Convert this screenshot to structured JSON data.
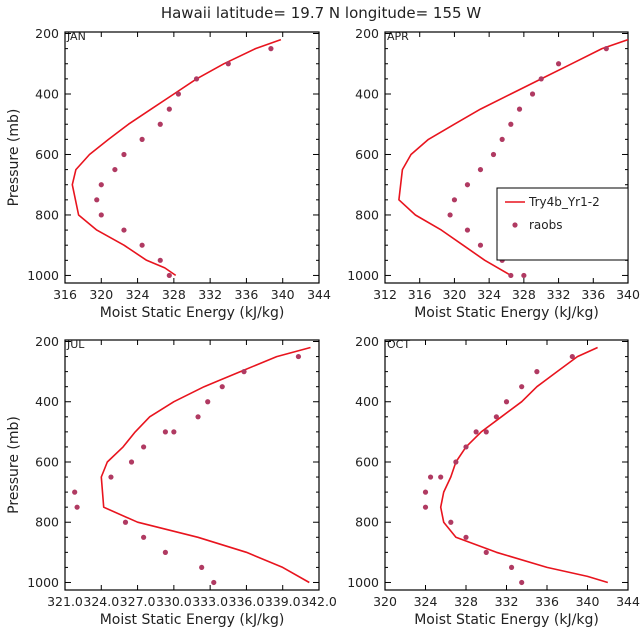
{
  "title": "Hawaii  latitude= 19.7 N longitude= 155 W",
  "colors": {
    "model": "#e8141e",
    "obs": "#b03a62",
    "axis": "#000000"
  },
  "legend": {
    "panel": 1,
    "model_label": "Try4b_Yr1-2",
    "obs_label": "raobs"
  },
  "chart_data": [
    {
      "type": "line",
      "title": "JAN",
      "xlabel": "Moist Static Energy (kJ/kg)",
      "ylabel": "Pressure (mb)",
      "xlim": [
        316,
        344
      ],
      "ylim": [
        1025,
        195
      ],
      "xticks": [
        "316",
        "320",
        "324",
        "328",
        "332",
        "336",
        "340",
        "344"
      ],
      "yticks": [
        "200",
        "400",
        "600",
        "800",
        "1000"
      ],
      "series": [
        {
          "name": "Try4b_Yr1-2",
          "kind": "line",
          "x": [
            339.8,
            337.0,
            333.5,
            330.5,
            328.0,
            325.5,
            323.0,
            320.8,
            318.7,
            317.2,
            316.8,
            317.5,
            319.5,
            322.5,
            325.0,
            327.0,
            328.2
          ],
          "y": [
            220,
            250,
            300,
            350,
            400,
            450,
            500,
            550,
            600,
            650,
            700,
            800,
            850,
            900,
            950,
            975,
            1000
          ]
        },
        {
          "name": "raobs",
          "kind": "scatter",
          "x": [
            338.7,
            334.0,
            330.5,
            328.5,
            327.5,
            326.5,
            324.5,
            322.5,
            321.5,
            320.0,
            319.5,
            320.0,
            322.5,
            324.5,
            326.5,
            327.5
          ],
          "y": [
            250,
            300,
            350,
            400,
            450,
            500,
            550,
            600,
            650,
            700,
            750,
            800,
            850,
            900,
            950,
            1000
          ]
        }
      ]
    },
    {
      "type": "line",
      "title": "APR",
      "xlabel": "Moist Static Energy (kJ/kg)",
      "ylabel": "Pressure (mb)",
      "xlim": [
        312,
        340
      ],
      "ylim": [
        1025,
        195
      ],
      "xticks": [
        "312",
        "316",
        "320",
        "324",
        "328",
        "332",
        "336",
        "340"
      ],
      "yticks": [
        "200",
        "400",
        "600",
        "800",
        "1000"
      ],
      "series": [
        {
          "name": "Try4b_Yr1-2",
          "kind": "line",
          "x": [
            340.0,
            337.0,
            333.5,
            330.0,
            326.5,
            323.0,
            320.0,
            317.0,
            315.0,
            314.0,
            313.6,
            315.5,
            318.5,
            321.0,
            323.5,
            326.5
          ],
          "y": [
            220,
            250,
            300,
            350,
            400,
            450,
            500,
            550,
            600,
            650,
            750,
            800,
            850,
            900,
            950,
            1000
          ]
        },
        {
          "name": "raobs",
          "kind": "scatter",
          "x": [
            337.5,
            332.0,
            330.0,
            329.0,
            327.5,
            326.5,
            325.5,
            324.5,
            323.0,
            321.5,
            320.0,
            319.5,
            321.5,
            323.0,
            325.5,
            326.5,
            328.0
          ],
          "y": [
            250,
            300,
            350,
            400,
            450,
            500,
            550,
            600,
            650,
            700,
            750,
            800,
            850,
            900,
            950,
            1000,
            1000
          ]
        }
      ]
    },
    {
      "type": "line",
      "title": "JUL",
      "xlabel": "Moist Static Energy (kJ/kg)",
      "ylabel": "Pressure (mb)",
      "xlim": [
        321.0,
        342.0
      ],
      "ylim": [
        1025,
        195
      ],
      "xticks": [
        "321.0",
        "324.0",
        "327.0",
        "330.0",
        "333.0",
        "336.0",
        "339.0",
        "342.0"
      ],
      "yticks": [
        "200",
        "400",
        "600",
        "800",
        "1000"
      ],
      "series": [
        {
          "name": "Try4b_Yr1-2",
          "kind": "line",
          "x": [
            341.3,
            338.5,
            335.5,
            332.5,
            330.0,
            328.0,
            326.8,
            325.8,
            324.5,
            324.0,
            324.2,
            327.0,
            332.0,
            336.0,
            339.0,
            341.2
          ],
          "y": [
            220,
            250,
            300,
            350,
            400,
            450,
            500,
            550,
            600,
            650,
            750,
            800,
            850,
            900,
            950,
            1000
          ]
        },
        {
          "name": "raobs",
          "kind": "scatter",
          "x": [
            340.3,
            335.8,
            334.0,
            332.8,
            332.0,
            330.0,
            329.3,
            327.5,
            326.5,
            324.8,
            321.8,
            322.0,
            326.0,
            327.5,
            329.3,
            332.3,
            333.3
          ],
          "y": [
            250,
            300,
            350,
            400,
            450,
            500,
            500,
            550,
            600,
            650,
            700,
            750,
            800,
            850,
            900,
            950,
            1000
          ]
        }
      ]
    },
    {
      "type": "line",
      "title": "OCT",
      "xlabel": "Moist Static Energy (kJ/kg)",
      "ylabel": "Pressure (mb)",
      "xlim": [
        320,
        344
      ],
      "ylim": [
        1025,
        195
      ],
      "xticks": [
        "320",
        "324",
        "328",
        "332",
        "336",
        "340",
        "344"
      ],
      "yticks": [
        "200",
        "400",
        "600",
        "800",
        "1000"
      ],
      "series": [
        {
          "name": "Try4b_Yr1-2",
          "kind": "line",
          "x": [
            341.0,
            339.0,
            337.0,
            335.0,
            333.5,
            331.5,
            329.5,
            328.0,
            327.0,
            326.5,
            325.8,
            325.5,
            325.8,
            327.0,
            331.0,
            336.0,
            340.0,
            342.0
          ],
          "y": [
            220,
            250,
            300,
            350,
            400,
            450,
            500,
            550,
            600,
            650,
            700,
            750,
            800,
            850,
            900,
            950,
            980,
            1000
          ]
        },
        {
          "name": "raobs",
          "kind": "scatter",
          "x": [
            338.5,
            335.0,
            333.5,
            332.0,
            331.0,
            330.0,
            329.0,
            328.0,
            327.0,
            325.5,
            324.5,
            324.0,
            324.0,
            326.5,
            328.0,
            330.0,
            332.5,
            333.5
          ],
          "y": [
            250,
            300,
            350,
            400,
            450,
            500,
            500,
            550,
            600,
            650,
            650,
            700,
            750,
            800,
            850,
            900,
            950,
            1000
          ]
        }
      ]
    }
  ]
}
